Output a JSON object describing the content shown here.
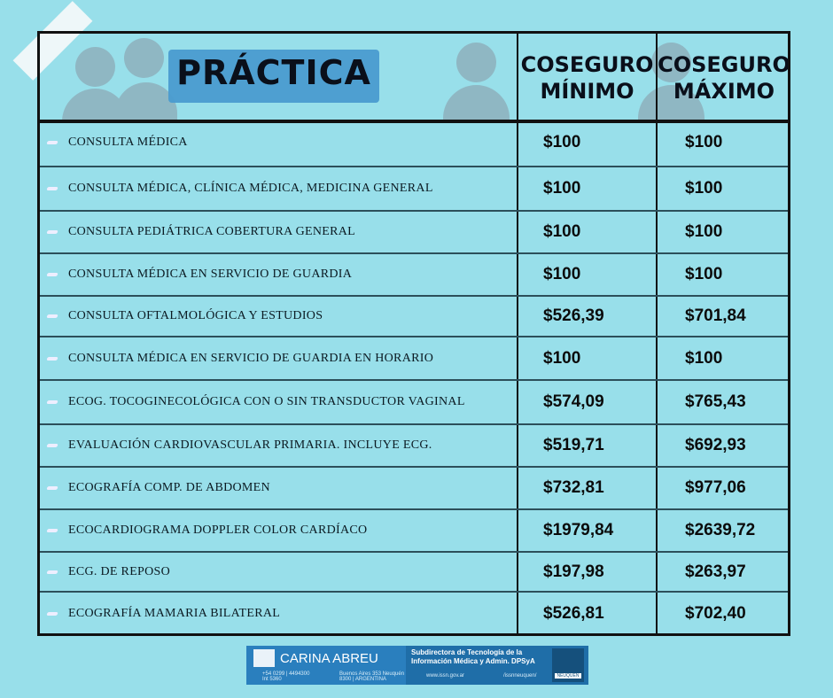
{
  "header": {
    "title": "PRÁCTICA",
    "col_min": "COSEGURO MÍNIMO",
    "col_max": "COSEGURO MÁXIMO"
  },
  "rows": [
    {
      "practica": "CONSULTA MÉDICA",
      "min": "$100",
      "max": "$100"
    },
    {
      "practica": "CONSULTA MÉDICA, CLÍNICA MÉDICA, MEDICINA GENERAL",
      "min": "$100",
      "max": "$100"
    },
    {
      "practica": "CONSULTA PEDIÁTRICA COBERTURA GENERAL",
      "min": "$100",
      "max": "$100"
    },
    {
      "practica": "CONSULTA MÉDICA EN SERVICIO DE GUARDIA",
      "min": "$100",
      "max": "$100"
    },
    {
      "practica": "CONSULTA OFTALMOLÓGICA Y ESTUDIOS",
      "min": "$526,39",
      "max": "$701,84"
    },
    {
      "practica": "CONSULTA MÉDICA EN SERVICIO DE GUARDIA EN HORARIO",
      "min": "$100",
      "max": "$100"
    },
    {
      "practica": "ECOG. TOCOGINECOLÓGICA CON O SIN TRANSDUCTOR VAGINAL",
      "min": "$574,09",
      "max": "$765,43"
    },
    {
      "practica": "EVALUACIÓN CARDIOVASCULAR PRIMARIA. INCLUYE ECG.",
      "min": "$519,71",
      "max": "$692,93"
    },
    {
      "practica": "ECOGRAFÍA COMP. DE ABDOMEN",
      "min": "$732,81",
      "max": "$977,06"
    },
    {
      "practica": "ECOCARDIOGRAMA DOPPLER COLOR CARDÍACO",
      "min": "$1979,84",
      "max": "$2639,72"
    },
    {
      "practica": "ECG. DE REPOSO",
      "min": "$197,98",
      "max": "$263,97"
    },
    {
      "practica": "ECOGRAFÍA MAMARIA BILATERAL",
      "min": "$526,81",
      "max": "$702,40"
    }
  ],
  "footer": {
    "name": "CARINA ABREU",
    "org": "Subdirectora de Tecnología de la Información Médica y Admin. DPSyA",
    "phone": "+54 0299 | 4494300 Int 5360",
    "address": "Buenos Aires 353 Neuquén 8300 | ARGENTINA",
    "web": "www.issn.gov.ar",
    "social": "/issnneuquen/",
    "logo_text": "NEUQUÉN"
  }
}
